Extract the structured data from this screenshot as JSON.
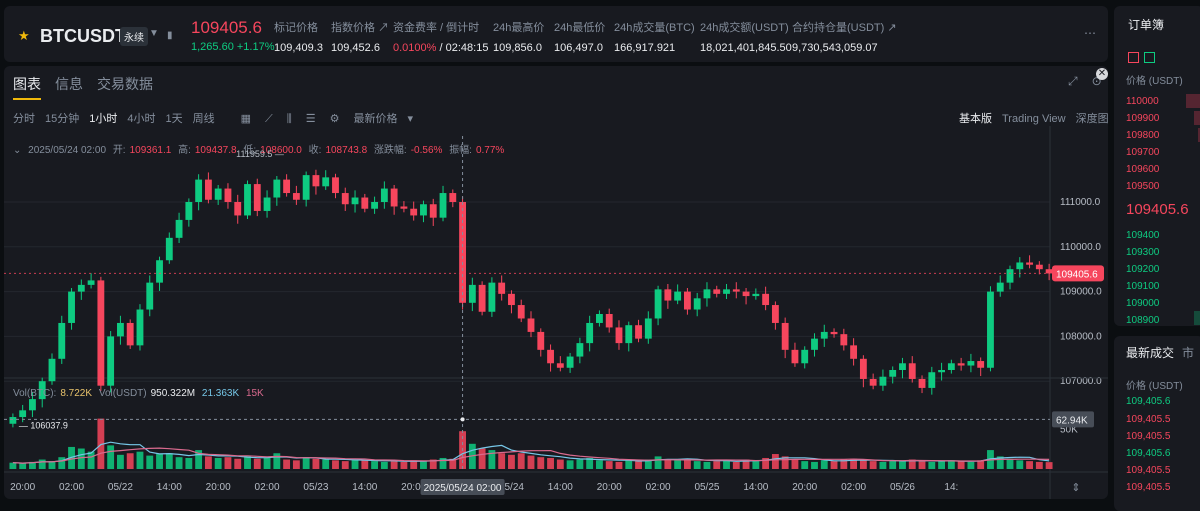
{
  "ticker": {
    "symbol": "BTCUSDT",
    "contract_badge": "永续",
    "last_price": "109405.6",
    "change": "1,265.60 +1.17%",
    "stats": [
      {
        "label": "标记价格",
        "value": "109,409.3"
      },
      {
        "label": "指数价格 ↗",
        "value": "109,452.6"
      },
      {
        "label": "资金费率 / 倒计时",
        "value_rate": "0.0100%",
        "value_countdown": "/ 02:48:15"
      },
      {
        "label": "24h最高价",
        "value": "109,856.0"
      },
      {
        "label": "24h最低价",
        "value": "106,497.0"
      },
      {
        "label": "24h成交量(BTC)",
        "value": "166,917.921"
      },
      {
        "label": "24h成交额(USDT)",
        "value": "18,021,401,845.50"
      },
      {
        "label": "合约持仓量(USDT) ↗",
        "value": "9,730,543,059.07"
      }
    ]
  },
  "chart_tabs": [
    "图表",
    "信息",
    "交易数据"
  ],
  "timeframes": [
    "分时",
    "15分钟",
    "1小时",
    "4小时",
    "1天",
    "周线"
  ],
  "active_timeframe": "1小时",
  "price_type": "最新价格",
  "views": [
    "基本版",
    "Trading View",
    "深度图"
  ],
  "active_view": "基本版",
  "ohlc": {
    "date": "2025/05/24 02:00",
    "open_label": "开:",
    "open": "109361.1",
    "high_label": "高:",
    "high": "109437.8",
    "low_label": "低:",
    "low": "108600.0",
    "close_label": "收:",
    "close": "108743.8",
    "chg_label": "涨跌幅:",
    "chg": "-0.56%",
    "amp_label": "振幅:",
    "amp": "0.77%"
  },
  "volume_legend": {
    "vol_btc_label": "Vol(BTC):",
    "vol_btc": "8.722K",
    "vol_usdt_label": "Vol(USDT)",
    "vol_usdt": "950.322M",
    "ma1": "21.363K",
    "ma2": "15K"
  },
  "chart_data": {
    "type": "candlestick",
    "price_ticks": [
      "111000.0",
      "110000.0",
      "109000.0",
      "108000.0",
      "107000.0"
    ],
    "price_tick_values": [
      111000,
      110000,
      109000,
      108000,
      107000
    ],
    "ylim": [
      106000,
      112250
    ],
    "x_labels": [
      "20:00",
      "02:00",
      "05/22",
      "14:00",
      "20:00",
      "02:00",
      "05/23",
      "14:00",
      "20:00",
      "05/24",
      "14:00",
      "20:00",
      "02:00",
      "05/25",
      "14:00",
      "20:00",
      "02:00",
      "05/26",
      "14:"
    ],
    "x_label_bar_index": [
      1,
      6,
      11,
      16,
      21,
      26,
      31,
      36,
      41,
      51,
      56,
      61,
      66,
      71,
      76,
      81,
      86,
      91,
      96
    ],
    "crosshair_time": "2025/05/24 02:00",
    "crosshair_bar_index": 46,
    "crosshair_volume_label": "62.94K",
    "last_price_label": "109405.6",
    "last_price": 109405.6,
    "high_annotation": "111959.5",
    "low_annotation": "106037.9",
    "volume_ticks": [
      "50K"
    ],
    "volume_tick_values": [
      50000
    ],
    "volume_max": 80000,
    "closes": [
      106200,
      106350,
      106600,
      107000,
      107500,
      108300,
      109000,
      109150,
      109250,
      106900,
      108000,
      108300,
      107800,
      108600,
      109200,
      109700,
      110200,
      110600,
      111000,
      111500,
      111050,
      111300,
      111000,
      110700,
      111400,
      110800,
      111100,
      111500,
      111200,
      111050,
      111600,
      111350,
      111550,
      111200,
      110950,
      111100,
      110850,
      111000,
      111300,
      110900,
      110850,
      110700,
      110950,
      110650,
      111200,
      111000,
      108750,
      109150,
      108550,
      109200,
      108950,
      108700,
      108400,
      108100,
      107700,
      107400,
      107300,
      107550,
      107850,
      108300,
      108500,
      108200,
      107850,
      108250,
      107950,
      108400,
      109050,
      108800,
      109000,
      108600,
      108850,
      109050,
      108950,
      109050,
      109000,
      108900,
      108950,
      108700,
      108300,
      107700,
      107400,
      107700,
      107950,
      108100,
      108050,
      107800,
      107500,
      107050,
      106900,
      107100,
      107250,
      107400,
      107050,
      106850,
      107200,
      107250,
      107400,
      107350,
      107450,
      107300,
      109000,
      109200,
      109500,
      109650,
      109600,
      109500,
      109405.6
    ],
    "volumes": [
      8000,
      7000,
      9000,
      12000,
      10000,
      15000,
      28000,
      26000,
      22000,
      64000,
      30000,
      18000,
      20000,
      22000,
      17000,
      19000,
      20000,
      15000,
      14000,
      24000,
      16000,
      14000,
      15000,
      13000,
      17000,
      13000,
      14000,
      20000,
      12000,
      11000,
      15000,
      13000,
      12000,
      11000,
      10000,
      12000,
      11000,
      10000,
      9000,
      10000,
      9000,
      11000,
      10000,
      12000,
      14000,
      13000,
      48000,
      32000,
      26000,
      24000,
      20000,
      18000,
      20000,
      17000,
      15000,
      14000,
      12000,
      11000,
      12000,
      14000,
      11000,
      10000,
      9000,
      11000,
      10000,
      12000,
      16000,
      12000,
      11000,
      13000,
      10000,
      9000,
      10000,
      11000,
      9000,
      12000,
      10000,
      14000,
      19000,
      16000,
      12000,
      10000,
      9000,
      11000,
      10000,
      12000,
      13000,
      11000,
      10000,
      9000,
      11000,
      10000,
      12000,
      10000,
      9000,
      10000,
      11000,
      10000,
      9000,
      11000,
      24000,
      16000,
      13000,
      11000,
      10000,
      9000,
      8722
    ]
  },
  "colors": {
    "up": "#0ecb81",
    "down": "#f6465d",
    "accent": "#f0b90b"
  },
  "orderbook": {
    "title": "订单簿",
    "header": "价格 (USDT)",
    "asks": [
      "110000",
      "109900",
      "109800",
      "109700",
      "109600",
      "109500"
    ],
    "last": "109405.6",
    "bids": [
      "109400",
      "109300",
      "109200",
      "109100",
      "109000",
      "108900"
    ]
  },
  "trades": {
    "tab_active": "最新成交",
    "tab_other": "市",
    "header": "价格 (USDT)",
    "rows": [
      {
        "price": "109,405.6",
        "side": "up"
      },
      {
        "price": "109,405.5",
        "side": "down"
      },
      {
        "price": "109,405.5",
        "side": "down"
      },
      {
        "price": "109,405.6",
        "side": "up"
      },
      {
        "price": "109,405.5",
        "side": "down"
      },
      {
        "price": "109,405.5",
        "side": "down"
      }
    ]
  }
}
